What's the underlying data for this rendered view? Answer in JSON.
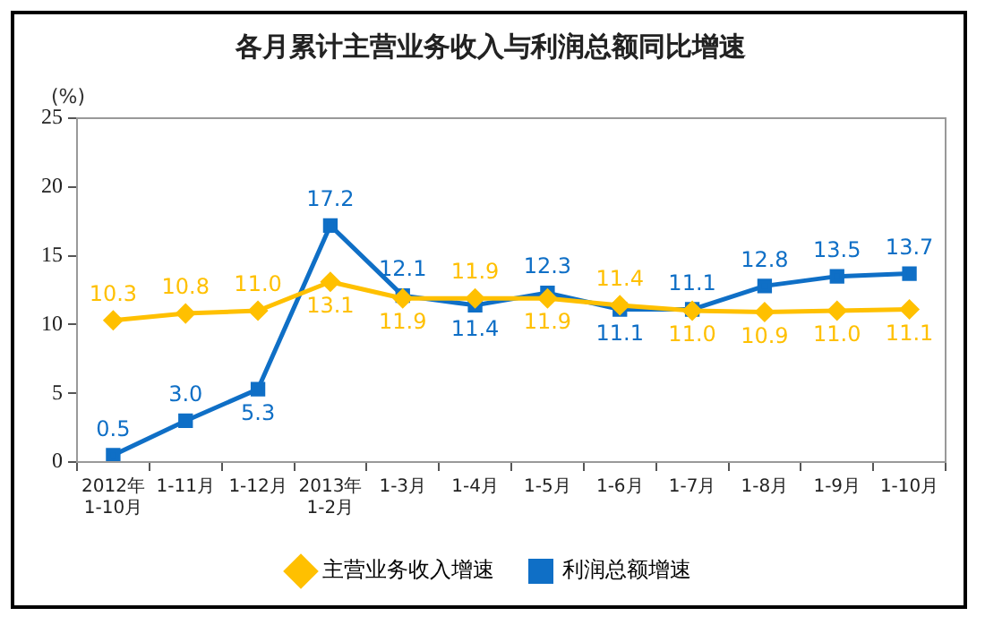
{
  "chart_data": {
    "type": "line",
    "title": "各月累计主营业务收入与利润总额同比增速",
    "ylabel": "(%)",
    "categories": [
      "2012年\n1-10月",
      "1-11月",
      "1-12月",
      "2013年\n1-2月",
      "1-3月",
      "1-4月",
      "1-5月",
      "1-6月",
      "1-7月",
      "1-8月",
      "1-9月",
      "1-10月"
    ],
    "series": [
      {
        "name": "主营业务收入增速",
        "color": "#ffc000",
        "marker": "diamond",
        "values": [
          10.3,
          10.8,
          11.0,
          13.1,
          11.9,
          11.9,
          11.9,
          11.4,
          11.0,
          10.9,
          11.0,
          11.1
        ],
        "value_labels": [
          "10.3",
          "10.8",
          "11.0",
          "13.1",
          "11.9",
          "11.9",
          "11.9",
          "11.4",
          "11.0",
          "10.9",
          "11.0",
          "11.1"
        ]
      },
      {
        "name": "利润总额增速",
        "color": "#0f6fc6",
        "marker": "square",
        "values": [
          0.5,
          3.0,
          5.3,
          17.2,
          12.1,
          11.4,
          12.3,
          11.1,
          11.1,
          12.8,
          13.5,
          13.7
        ],
        "value_labels": [
          "0.5",
          "3.0",
          "5.3",
          "17.2",
          "12.1",
          "11.4",
          "12.3",
          "11.1",
          "11.1",
          "12.8",
          "13.5",
          "13.7"
        ]
      }
    ],
    "ylim": [
      0,
      25
    ],
    "yticks": [
      0,
      5,
      10,
      15,
      20,
      25
    ],
    "grid": false,
    "legend": "bottom"
  }
}
